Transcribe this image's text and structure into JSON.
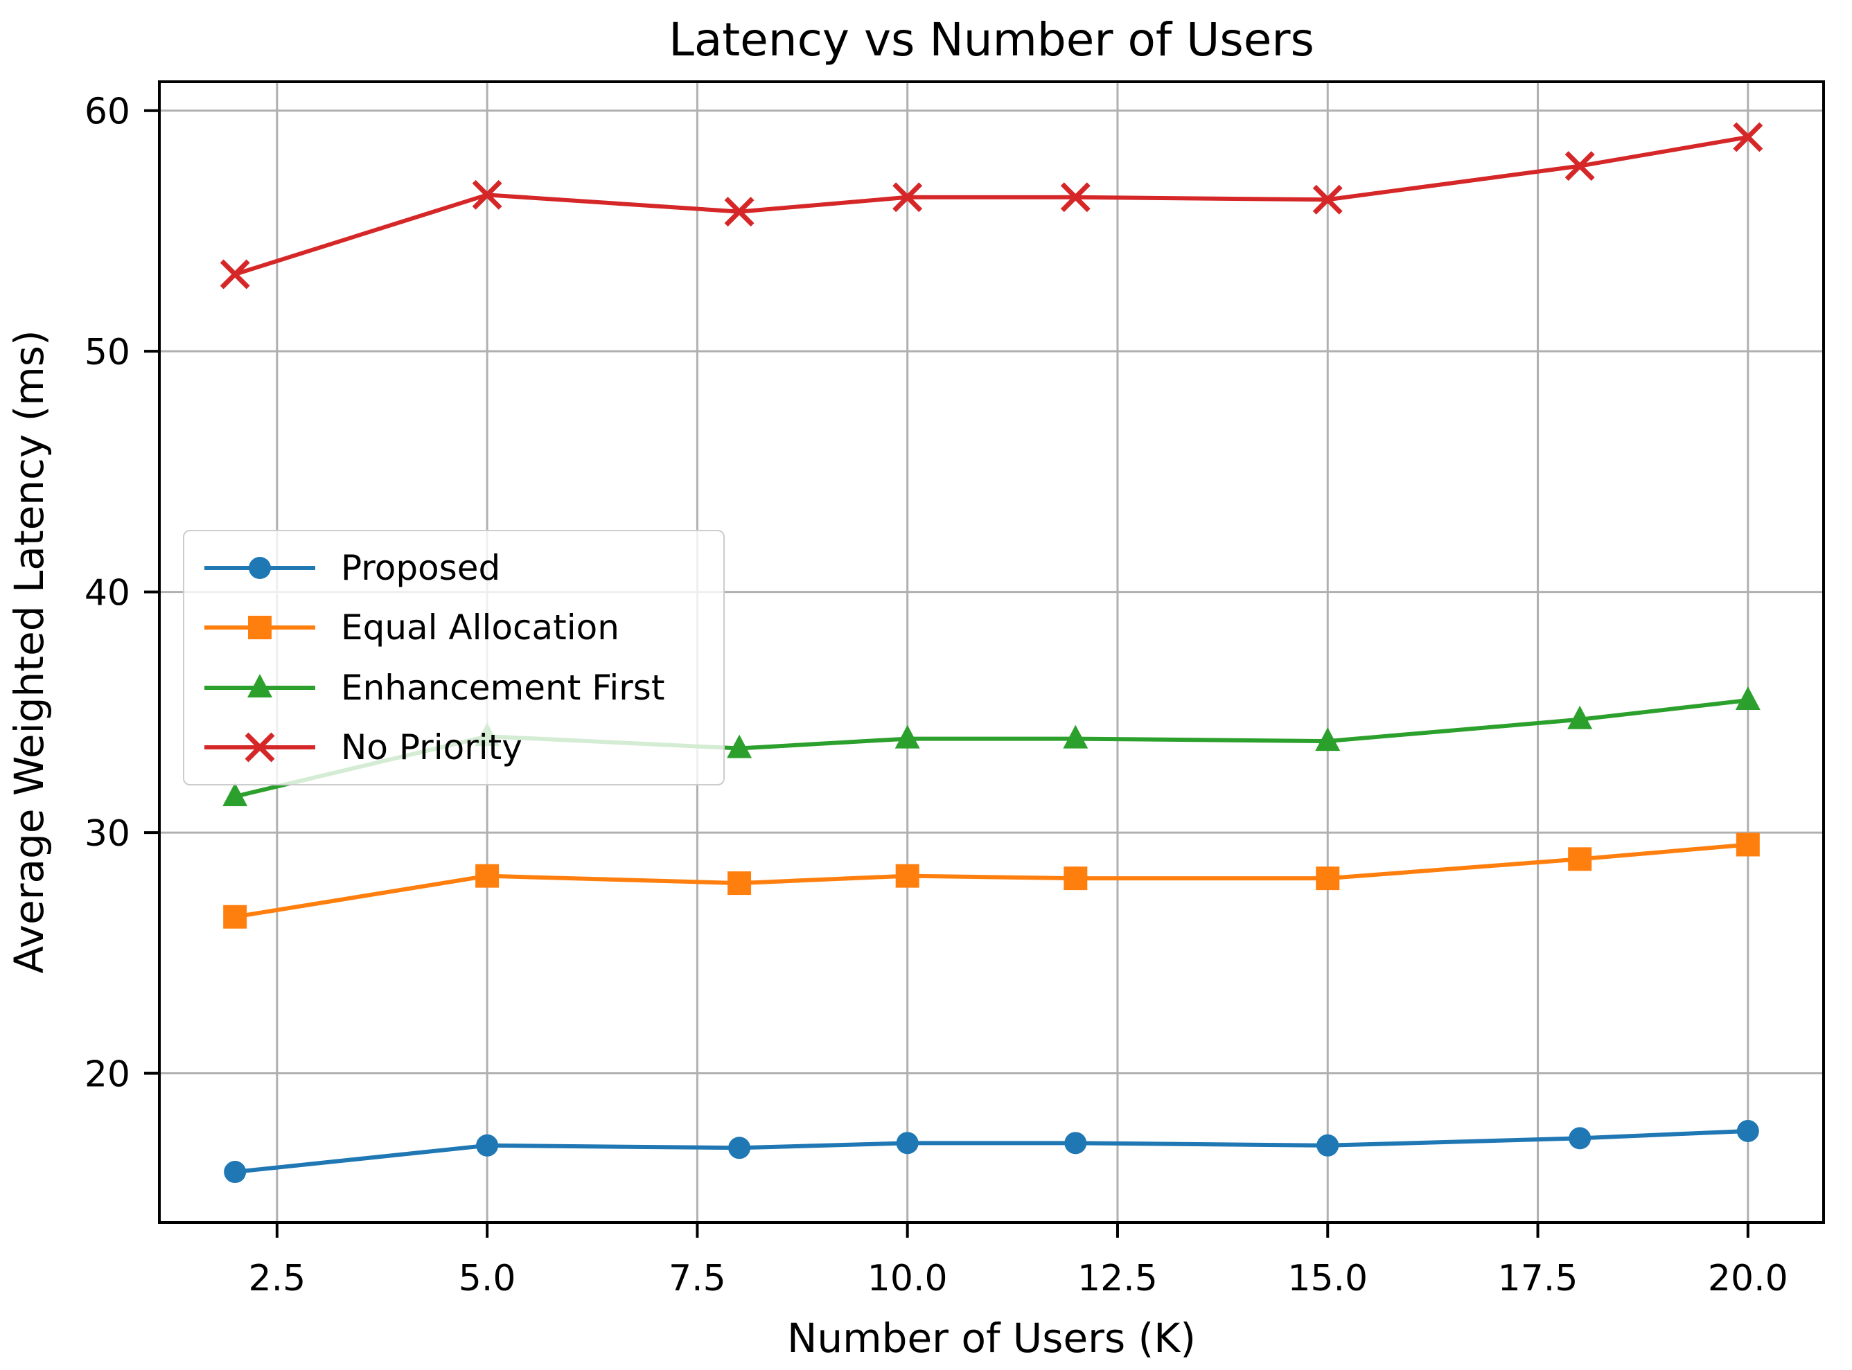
{
  "title": "Latency vs Number of Users",
  "chart_data": {
    "type": "line",
    "title": "Latency vs Number of Users",
    "xlabel": "Number of Users (K)",
    "ylabel": "Average Weighted Latency (ms)",
    "x": [
      2,
      5,
      8,
      10,
      12,
      15,
      18,
      20
    ],
    "series": [
      {
        "name": "Proposed",
        "color": "#1f77b4",
        "marker": "circle",
        "values": [
          15.9,
          17.0,
          16.9,
          17.1,
          17.1,
          17.0,
          17.3,
          17.6
        ]
      },
      {
        "name": "Equal Allocation",
        "color": "#ff7f0e",
        "marker": "square",
        "values": [
          26.5,
          28.2,
          27.9,
          28.2,
          28.1,
          28.1,
          28.9,
          29.5
        ]
      },
      {
        "name": "Enhancement First",
        "color": "#2ca02c",
        "marker": "triangle",
        "values": [
          31.5,
          34.0,
          33.5,
          33.9,
          33.9,
          33.8,
          34.7,
          35.5
        ]
      },
      {
        "name": "No Priority",
        "color": "#d62728",
        "marker": "x",
        "values": [
          53.2,
          56.5,
          55.8,
          56.4,
          56.4,
          56.3,
          57.7,
          58.9
        ]
      }
    ],
    "xticks": [
      2.5,
      5.0,
      7.5,
      10.0,
      12.5,
      15.0,
      17.5,
      20.0
    ],
    "xtick_labels": [
      "2.5",
      "5.0",
      "7.5",
      "10.0",
      "12.5",
      "15.0",
      "17.5",
      "20.0"
    ],
    "yticks": [
      20,
      30,
      40,
      50,
      60
    ],
    "ytick_labels": [
      "20",
      "30",
      "40",
      "50",
      "60"
    ],
    "xlim": [
      1.1,
      20.9
    ],
    "ylim": [
      13.8,
      61.2
    ],
    "grid": true,
    "grid_color": "#b0b0b0",
    "spine_color": "#000000",
    "background_color": "#ffffff",
    "legend": {
      "position": "center-left",
      "entries": [
        "Proposed",
        "Equal Allocation",
        "Enhancement First",
        "No Priority"
      ]
    }
  }
}
